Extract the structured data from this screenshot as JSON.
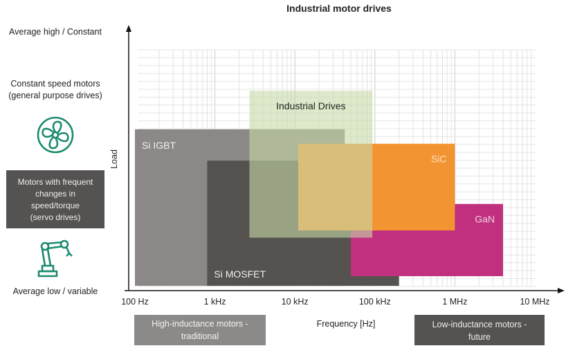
{
  "chart_data": {
    "type": "area",
    "title": "Industrial motor drives",
    "xlabel": "Frequency [Hz]",
    "ylabel": "Load",
    "xscale": "log",
    "xlim": [
      100,
      10000000
    ],
    "ylim": [
      0,
      100
    ],
    "xticks": [
      {
        "value": 100,
        "label": "100 Hz"
      },
      {
        "value": 1000,
        "label": "1 kHz"
      },
      {
        "value": 10000,
        "label": "10 kHz"
      },
      {
        "value": 100000,
        "label": "100 kHz"
      },
      {
        "value": 1000000,
        "label": "1 MHz"
      },
      {
        "value": 10000000,
        "label": "10 MHz"
      }
    ],
    "grid": true,
    "regions": [
      {
        "name": "Si IGBT",
        "f_min": 100,
        "f_max": 42000,
        "load_min": 2,
        "load_max": 67,
        "color": "#8c8888",
        "opacity": 1,
        "label_pos": "top-left",
        "text_color": "#f0f0f0"
      },
      {
        "name": "Si MOSFET",
        "f_min": 800,
        "f_max": 200000,
        "load_min": 2,
        "load_max": 54,
        "color": "#55524f",
        "opacity": 1,
        "label_pos": "bottom-left",
        "text_color": "#f0f0f0"
      },
      {
        "name": "GaN",
        "f_min": 50000,
        "f_max": 4000000,
        "load_min": 6,
        "load_max": 36,
        "color": "#c0307f",
        "opacity": 1,
        "label_pos": "top-right",
        "text_color": "#f5d0e5"
      },
      {
        "name": "SiC",
        "f_min": 11000,
        "f_max": 1000000,
        "load_min": 25,
        "load_max": 61,
        "color": "#f39433",
        "opacity": 1,
        "label_pos": "top-right",
        "text_color": "#fde3c4"
      },
      {
        "name": "Industrial Drives",
        "f_min": 2700,
        "f_max": 93000,
        "load_min": 22,
        "load_max": 83,
        "color": "#c6dba6",
        "opacity": 0.6,
        "label_pos": "top-center",
        "text_color": "#222222"
      }
    ]
  },
  "y_annotations": {
    "top": "Average high / Constant",
    "constant_speed": [
      "Constant speed motors",
      "(general purpose drives)"
    ],
    "servo": [
      "Motors with frequent",
      "changes in",
      "speed/torque",
      "(servo drives)"
    ],
    "bottom": "Average low / variable"
  },
  "x_annotations": {
    "traditional": [
      "High-inductance motors -",
      "traditional"
    ],
    "future": [
      "Low-inductance motors -",
      "future"
    ]
  },
  "icons": {
    "fan": "fan-icon",
    "robot": "robot-arm-icon",
    "accent": "#1a8a6e"
  }
}
